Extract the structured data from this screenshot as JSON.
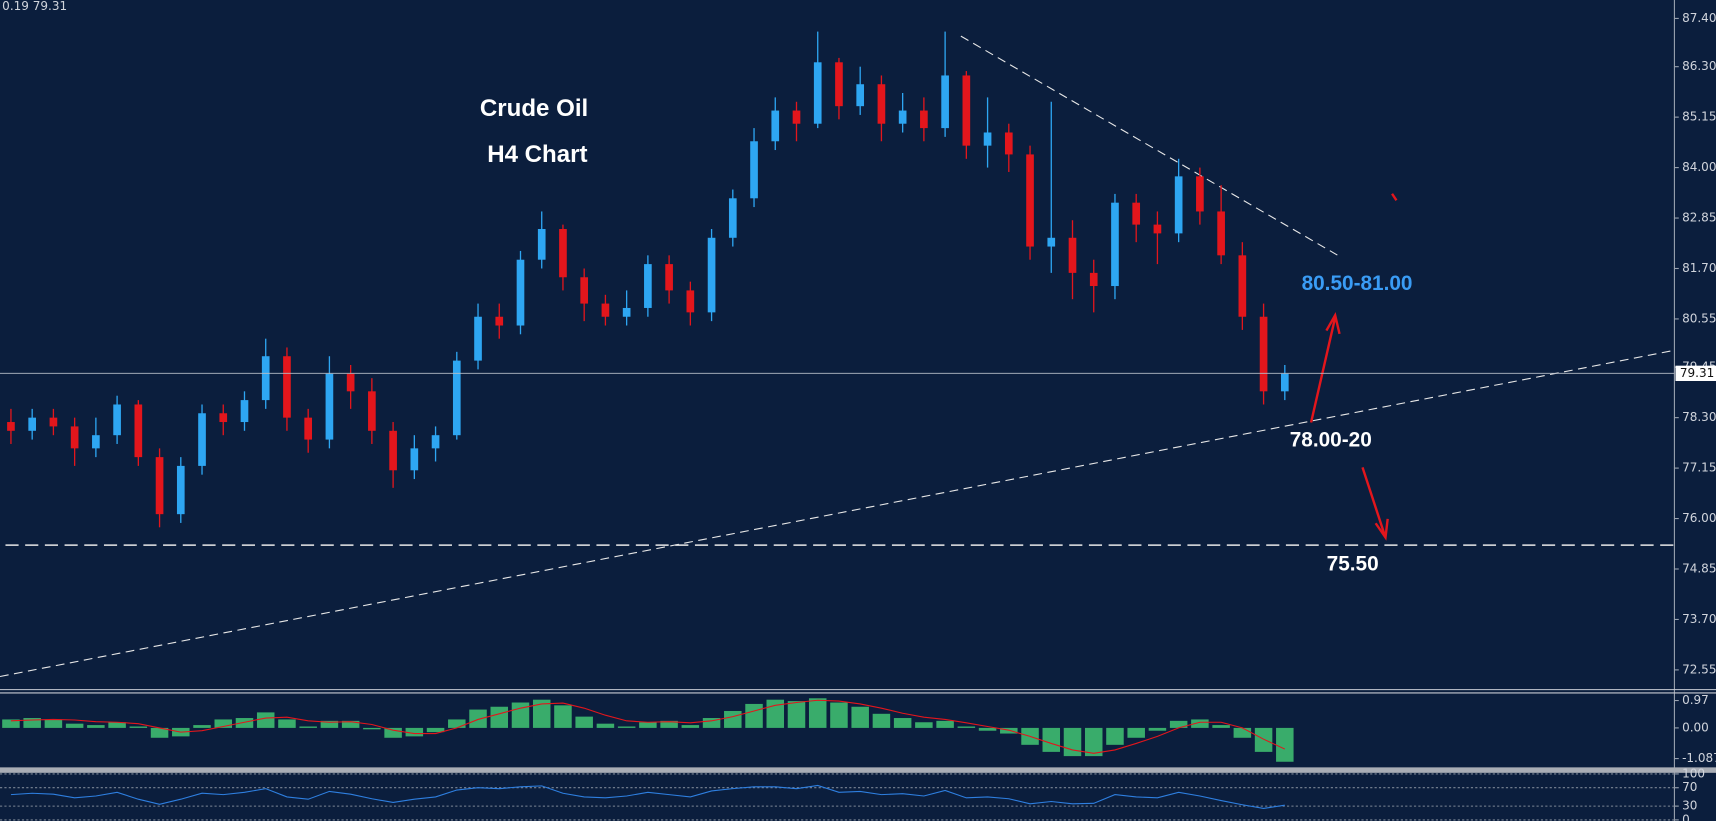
{
  "chart_data": [
    {
      "type": "candlestick",
      "header": "0.19 79.31",
      "title": "Crude Oil",
      "subtitle": "H4 Chart",
      "annotations": [
        "80.50-81.00",
        "78.00-20",
        "75.50"
      ],
      "up_color": "#2ea6f2",
      "down_color": "#e3161c",
      "last_price": 79.31,
      "ylim": [
        72.1,
        87.82
      ],
      "yticks": [
        {
          "value": 87.4,
          "label": "87.40"
        },
        {
          "value": 86.3,
          "label": "86.30"
        },
        85.15,
        {
          "value": 84,
          "label": "84.00"
        },
        82.85,
        {
          "value": 81.7,
          "label": "81.70"
        },
        80.55,
        79.45,
        {
          "value": 78.3,
          "label": "78.30"
        },
        77.15,
        {
          "value": 76,
          "label": "76.00"
        },
        74.85,
        {
          "value": 73.7,
          "label": "73.70"
        },
        72.55
      ],
      "open": [
        78.2,
        78.0,
        78.3,
        78.1,
        77.6,
        77.9,
        78.6,
        77.4,
        76.1,
        77.2,
        78.4,
        78.2,
        78.7,
        79.7,
        78.3,
        77.8,
        79.3,
        78.9,
        78.0,
        77.1,
        77.6,
        77.9,
        79.6,
        80.6,
        80.4,
        81.9,
        82.6,
        81.5,
        80.9,
        80.6,
        80.8,
        81.8,
        81.2,
        80.7,
        82.4,
        83.3,
        84.6,
        85.3,
        85.0,
        86.4,
        85.4,
        85.9,
        85.0,
        85.3,
        84.9,
        86.1,
        84.5,
        84.8,
        84.3,
        82.2,
        82.4,
        81.6,
        81.3,
        83.2,
        82.7,
        82.5,
        83.8,
        83.0,
        82.0,
        80.6,
        78.9
      ],
      "high": [
        78.5,
        78.5,
        78.5,
        78.3,
        78.3,
        78.8,
        78.7,
        77.6,
        77.4,
        78.6,
        78.6,
        78.9,
        80.1,
        79.9,
        78.5,
        79.7,
        79.5,
        79.2,
        78.2,
        77.9,
        78.1,
        79.8,
        80.9,
        80.9,
        82.1,
        83.0,
        82.7,
        81.7,
        81.1,
        81.2,
        82.0,
        82.0,
        81.4,
        82.6,
        83.5,
        84.9,
        85.6,
        85.5,
        87.1,
        86.5,
        86.3,
        86.1,
        85.7,
        85.6,
        87.1,
        86.2,
        85.6,
        85.0,
        84.5,
        85.5,
        82.8,
        81.9,
        83.4,
        83.4,
        83.0,
        84.2,
        84.0,
        83.6,
        82.3,
        80.9,
        79.5
      ],
      "low": [
        77.7,
        77.8,
        77.9,
        77.2,
        77.4,
        77.7,
        77.2,
        75.8,
        75.9,
        77.0,
        77.9,
        78.0,
        78.5,
        78.0,
        77.5,
        77.6,
        78.5,
        77.7,
        76.7,
        76.9,
        77.3,
        77.8,
        79.4,
        80.1,
        80.2,
        81.7,
        81.2,
        80.5,
        80.4,
        80.4,
        80.6,
        80.9,
        80.4,
        80.5,
        82.2,
        83.1,
        84.4,
        84.6,
        84.9,
        85.1,
        85.2,
        84.6,
        84.8,
        84.6,
        84.7,
        84.2,
        84.0,
        83.9,
        81.9,
        81.6,
        81.0,
        80.7,
        81.0,
        82.3,
        81.8,
        82.3,
        82.7,
        81.8,
        80.3,
        78.6,
        78.7
      ],
      "close": [
        78.0,
        78.3,
        78.1,
        77.6,
        77.9,
        78.6,
        77.4,
        76.1,
        77.2,
        78.4,
        78.2,
        78.7,
        79.7,
        78.3,
        77.8,
        79.3,
        78.9,
        78.0,
        77.1,
        77.6,
        77.9,
        79.6,
        80.6,
        80.4,
        81.9,
        82.6,
        81.5,
        80.9,
        80.6,
        80.8,
        81.8,
        81.2,
        80.7,
        82.4,
        83.3,
        84.6,
        85.3,
        85.0,
        86.4,
        85.4,
        85.9,
        85.0,
        85.3,
        84.9,
        86.1,
        84.5,
        84.8,
        84.3,
        82.2,
        82.4,
        81.6,
        81.3,
        83.2,
        82.7,
        82.5,
        83.8,
        83.0,
        82.0,
        80.6,
        78.9,
        79.3
      ]
    },
    {
      "type": "bar",
      "color": "#3cb46e",
      "ylim": [
        -1.36,
        1.24
      ],
      "yticks": [
        0.97,
        {
          "value": 0,
          "label": "0.00"
        },
        -1.087
      ],
      "values": [
        0.3,
        0.35,
        0.3,
        0.15,
        0.1,
        0.2,
        0.05,
        -0.35,
        -0.3,
        0.1,
        0.3,
        0.35,
        0.55,
        0.3,
        0.05,
        0.25,
        0.25,
        -0.05,
        -0.35,
        -0.3,
        -0.15,
        0.3,
        0.65,
        0.75,
        0.9,
        1.0,
        0.8,
        0.4,
        0.15,
        0.05,
        0.2,
        0.25,
        0.1,
        0.35,
        0.6,
        0.85,
        1.0,
        0.95,
        1.05,
        0.9,
        0.75,
        0.5,
        0.35,
        0.2,
        0.25,
        0.05,
        -0.1,
        -0.2,
        -0.6,
        -0.85,
        -1.0,
        -1.0,
        -0.6,
        -0.35,
        -0.1,
        0.25,
        0.3,
        0.1,
        -0.35,
        -0.85,
        -1.2
      ],
      "signal": {
        "color": "#e3161c",
        "values": [
          0.25,
          0.28,
          0.3,
          0.28,
          0.22,
          0.2,
          0.15,
          0.0,
          -0.15,
          -0.1,
          0.05,
          0.2,
          0.35,
          0.38,
          0.25,
          0.2,
          0.22,
          0.12,
          -0.08,
          -0.2,
          -0.2,
          0.0,
          0.3,
          0.5,
          0.7,
          0.85,
          0.88,
          0.7,
          0.45,
          0.25,
          0.2,
          0.22,
          0.18,
          0.25,
          0.4,
          0.6,
          0.8,
          0.9,
          0.98,
          0.95,
          0.85,
          0.7,
          0.52,
          0.38,
          0.3,
          0.18,
          0.05,
          -0.08,
          -0.3,
          -0.55,
          -0.78,
          -0.9,
          -0.78,
          -0.55,
          -0.3,
          0.0,
          0.2,
          0.2,
          0.0,
          -0.4,
          -0.75
        ]
      }
    },
    {
      "type": "line",
      "color": "#2e7fe0",
      "ylim": [
        0,
        100
      ],
      "yticks": [
        100,
        70,
        30,
        0
      ],
      "values": [
        55,
        58,
        56,
        48,
        52,
        60,
        45,
        34,
        45,
        58,
        55,
        60,
        68,
        50,
        45,
        62,
        56,
        46,
        38,
        45,
        50,
        65,
        70,
        68,
        72,
        74,
        58,
        50,
        48,
        52,
        60,
        55,
        50,
        63,
        68,
        72,
        72,
        68,
        75,
        60,
        62,
        55,
        57,
        52,
        64,
        48,
        50,
        46,
        35,
        40,
        35,
        36,
        55,
        50,
        48,
        60,
        52,
        42,
        33,
        25,
        32
      ]
    }
  ]
}
